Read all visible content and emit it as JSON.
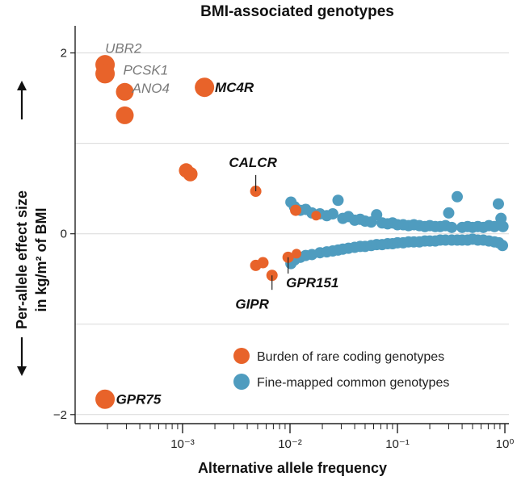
{
  "chart_data": {
    "type": "scatter",
    "title": "BMI-associated genotypes",
    "xlabel": "Alternative allele frequency",
    "ylabel_line1": "Per-allele effect size",
    "ylabel_line2": "in kg/m² of BMI",
    "x_scale": "log",
    "xlim": [
      0.0001,
      1
    ],
    "ylim": [
      -2.1,
      2.3
    ],
    "x_ticks": [
      {
        "value": 0.001,
        "label": "10⁻³"
      },
      {
        "value": 0.01,
        "label": "10⁻²"
      },
      {
        "value": 0.1,
        "label": "10⁻¹"
      },
      {
        "value": 1,
        "label": "10⁰"
      }
    ],
    "y_ticks": [
      {
        "value": 2,
        "label": "2"
      },
      {
        "value": 0,
        "label": "0"
      },
      {
        "value": -2,
        "label": "−2"
      }
    ],
    "grid": "horizontal",
    "legend_position": "bottom-right",
    "series": [
      {
        "name": "Burden of rare coding genotypes",
        "color": "#e8632a",
        "points": [
          {
            "x": 0.00019,
            "y": 1.87,
            "r": 12
          },
          {
            "x": 0.00019,
            "y": 1.77,
            "r": 12
          },
          {
            "x": 0.00029,
            "y": 1.57,
            "r": 11
          },
          {
            "x": 0.00029,
            "y": 1.31,
            "r": 11
          },
          {
            "x": 0.0016,
            "y": 1.62,
            "r": 12
          },
          {
            "x": 0.00108,
            "y": 0.7,
            "r": 9
          },
          {
            "x": 0.00118,
            "y": 0.66,
            "r": 9
          },
          {
            "x": 0.0048,
            "y": 0.47,
            "r": 7
          },
          {
            "x": 0.0048,
            "y": -0.35,
            "r": 7
          },
          {
            "x": 0.0056,
            "y": -0.32,
            "r": 7
          },
          {
            "x": 0.0068,
            "y": -0.46,
            "r": 7
          },
          {
            "x": 0.0096,
            "y": -0.26,
            "r": 7
          },
          {
            "x": 0.0115,
            "y": -0.22,
            "r": 6
          },
          {
            "x": 0.0113,
            "y": 0.26,
            "r": 7
          },
          {
            "x": 0.0175,
            "y": 0.2,
            "r": 6
          },
          {
            "x": 0.00019,
            "y": -1.83,
            "r": 12
          }
        ]
      },
      {
        "name": "Fine-mapped common genotypes",
        "color": "#4f9cbf",
        "points": [
          {
            "x": 0.0102,
            "y": 0.35
          },
          {
            "x": 0.011,
            "y": 0.3
          },
          {
            "x": 0.0125,
            "y": 0.26
          },
          {
            "x": 0.014,
            "y": 0.27
          },
          {
            "x": 0.016,
            "y": 0.23
          },
          {
            "x": 0.019,
            "y": 0.22
          },
          {
            "x": 0.022,
            "y": 0.2
          },
          {
            "x": 0.025,
            "y": 0.22
          },
          {
            "x": 0.028,
            "y": 0.37
          },
          {
            "x": 0.031,
            "y": 0.17
          },
          {
            "x": 0.035,
            "y": 0.19
          },
          {
            "x": 0.04,
            "y": 0.15
          },
          {
            "x": 0.045,
            "y": 0.16
          },
          {
            "x": 0.05,
            "y": 0.14
          },
          {
            "x": 0.057,
            "y": 0.13
          },
          {
            "x": 0.064,
            "y": 0.21
          },
          {
            "x": 0.072,
            "y": 0.12
          },
          {
            "x": 0.081,
            "y": 0.11
          },
          {
            "x": 0.09,
            "y": 0.12
          },
          {
            "x": 0.1,
            "y": 0.1
          },
          {
            "x": 0.113,
            "y": 0.1
          },
          {
            "x": 0.127,
            "y": 0.09
          },
          {
            "x": 0.142,
            "y": 0.1
          },
          {
            "x": 0.16,
            "y": 0.09
          },
          {
            "x": 0.18,
            "y": 0.08
          },
          {
            "x": 0.2,
            "y": 0.09
          },
          {
            "x": 0.225,
            "y": 0.08
          },
          {
            "x": 0.25,
            "y": 0.08
          },
          {
            "x": 0.28,
            "y": 0.09
          },
          {
            "x": 0.3,
            "y": 0.23
          },
          {
            "x": 0.32,
            "y": 0.07
          },
          {
            "x": 0.36,
            "y": 0.41
          },
          {
            "x": 0.4,
            "y": 0.07
          },
          {
            "x": 0.45,
            "y": 0.08
          },
          {
            "x": 0.5,
            "y": 0.07
          },
          {
            "x": 0.56,
            "y": 0.08
          },
          {
            "x": 0.63,
            "y": 0.07
          },
          {
            "x": 0.71,
            "y": 0.09
          },
          {
            "x": 0.8,
            "y": 0.08
          },
          {
            "x": 0.87,
            "y": 0.33
          },
          {
            "x": 0.92,
            "y": 0.17
          },
          {
            "x": 0.96,
            "y": 0.08
          },
          {
            "x": 0.0102,
            "y": -0.33
          },
          {
            "x": 0.011,
            "y": -0.29
          },
          {
            "x": 0.0125,
            "y": -0.26
          },
          {
            "x": 0.014,
            "y": -0.24
          },
          {
            "x": 0.016,
            "y": -0.23
          },
          {
            "x": 0.019,
            "y": -0.21
          },
          {
            "x": 0.022,
            "y": -0.2
          },
          {
            "x": 0.025,
            "y": -0.19
          },
          {
            "x": 0.028,
            "y": -0.18
          },
          {
            "x": 0.031,
            "y": -0.17
          },
          {
            "x": 0.035,
            "y": -0.16
          },
          {
            "x": 0.04,
            "y": -0.15
          },
          {
            "x": 0.045,
            "y": -0.14
          },
          {
            "x": 0.05,
            "y": -0.14
          },
          {
            "x": 0.057,
            "y": -0.13
          },
          {
            "x": 0.064,
            "y": -0.12
          },
          {
            "x": 0.072,
            "y": -0.12
          },
          {
            "x": 0.081,
            "y": -0.11
          },
          {
            "x": 0.09,
            "y": -0.11
          },
          {
            "x": 0.1,
            "y": -0.1
          },
          {
            "x": 0.113,
            "y": -0.1
          },
          {
            "x": 0.127,
            "y": -0.09
          },
          {
            "x": 0.142,
            "y": -0.09
          },
          {
            "x": 0.16,
            "y": -0.09
          },
          {
            "x": 0.18,
            "y": -0.08
          },
          {
            "x": 0.2,
            "y": -0.08
          },
          {
            "x": 0.225,
            "y": -0.08
          },
          {
            "x": 0.25,
            "y": -0.07
          },
          {
            "x": 0.28,
            "y": -0.07
          },
          {
            "x": 0.32,
            "y": -0.07
          },
          {
            "x": 0.36,
            "y": -0.07
          },
          {
            "x": 0.4,
            "y": -0.07
          },
          {
            "x": 0.45,
            "y": -0.07
          },
          {
            "x": 0.5,
            "y": -0.06
          },
          {
            "x": 0.56,
            "y": -0.07
          },
          {
            "x": 0.63,
            "y": -0.07
          },
          {
            "x": 0.71,
            "y": -0.08
          },
          {
            "x": 0.8,
            "y": -0.09
          },
          {
            "x": 0.88,
            "y": -0.1
          },
          {
            "x": 0.95,
            "y": -0.13
          }
        ]
      }
    ],
    "annotations": [
      {
        "text": "UBR2",
        "style": "gray",
        "x": 0.00019,
        "y": 2.0
      },
      {
        "text": "PCSK1",
        "style": "gray",
        "x": 0.00028,
        "y": 1.76
      },
      {
        "text": "ANO4",
        "style": "gray",
        "x": 0.00034,
        "y": 1.56
      },
      {
        "text": "MC4R",
        "style": "bold",
        "x": 0.002,
        "y": 1.57
      },
      {
        "text": "CALCR",
        "style": "bold",
        "x": 0.0027,
        "y": 0.74
      },
      {
        "text": "GPR151",
        "style": "bold",
        "x": 0.0092,
        "y": -0.59
      },
      {
        "text": "GIPR",
        "style": "bold",
        "x": 0.0031,
        "y": -0.83
      },
      {
        "text": "GPR75",
        "style": "bold",
        "x": 0.00024,
        "y": -1.88
      }
    ],
    "callouts": [
      {
        "from": {
          "x": 0.0048,
          "y": 0.47
        },
        "to": {
          "x": 0.0048,
          "y": 0.65
        }
      },
      {
        "from": {
          "x": 0.0096,
          "y": -0.26
        },
        "to": {
          "x": 0.0096,
          "y": -0.44
        }
      },
      {
        "from": {
          "x": 0.0068,
          "y": -0.46
        },
        "to": {
          "x": 0.0068,
          "y": -0.62
        }
      }
    ]
  }
}
